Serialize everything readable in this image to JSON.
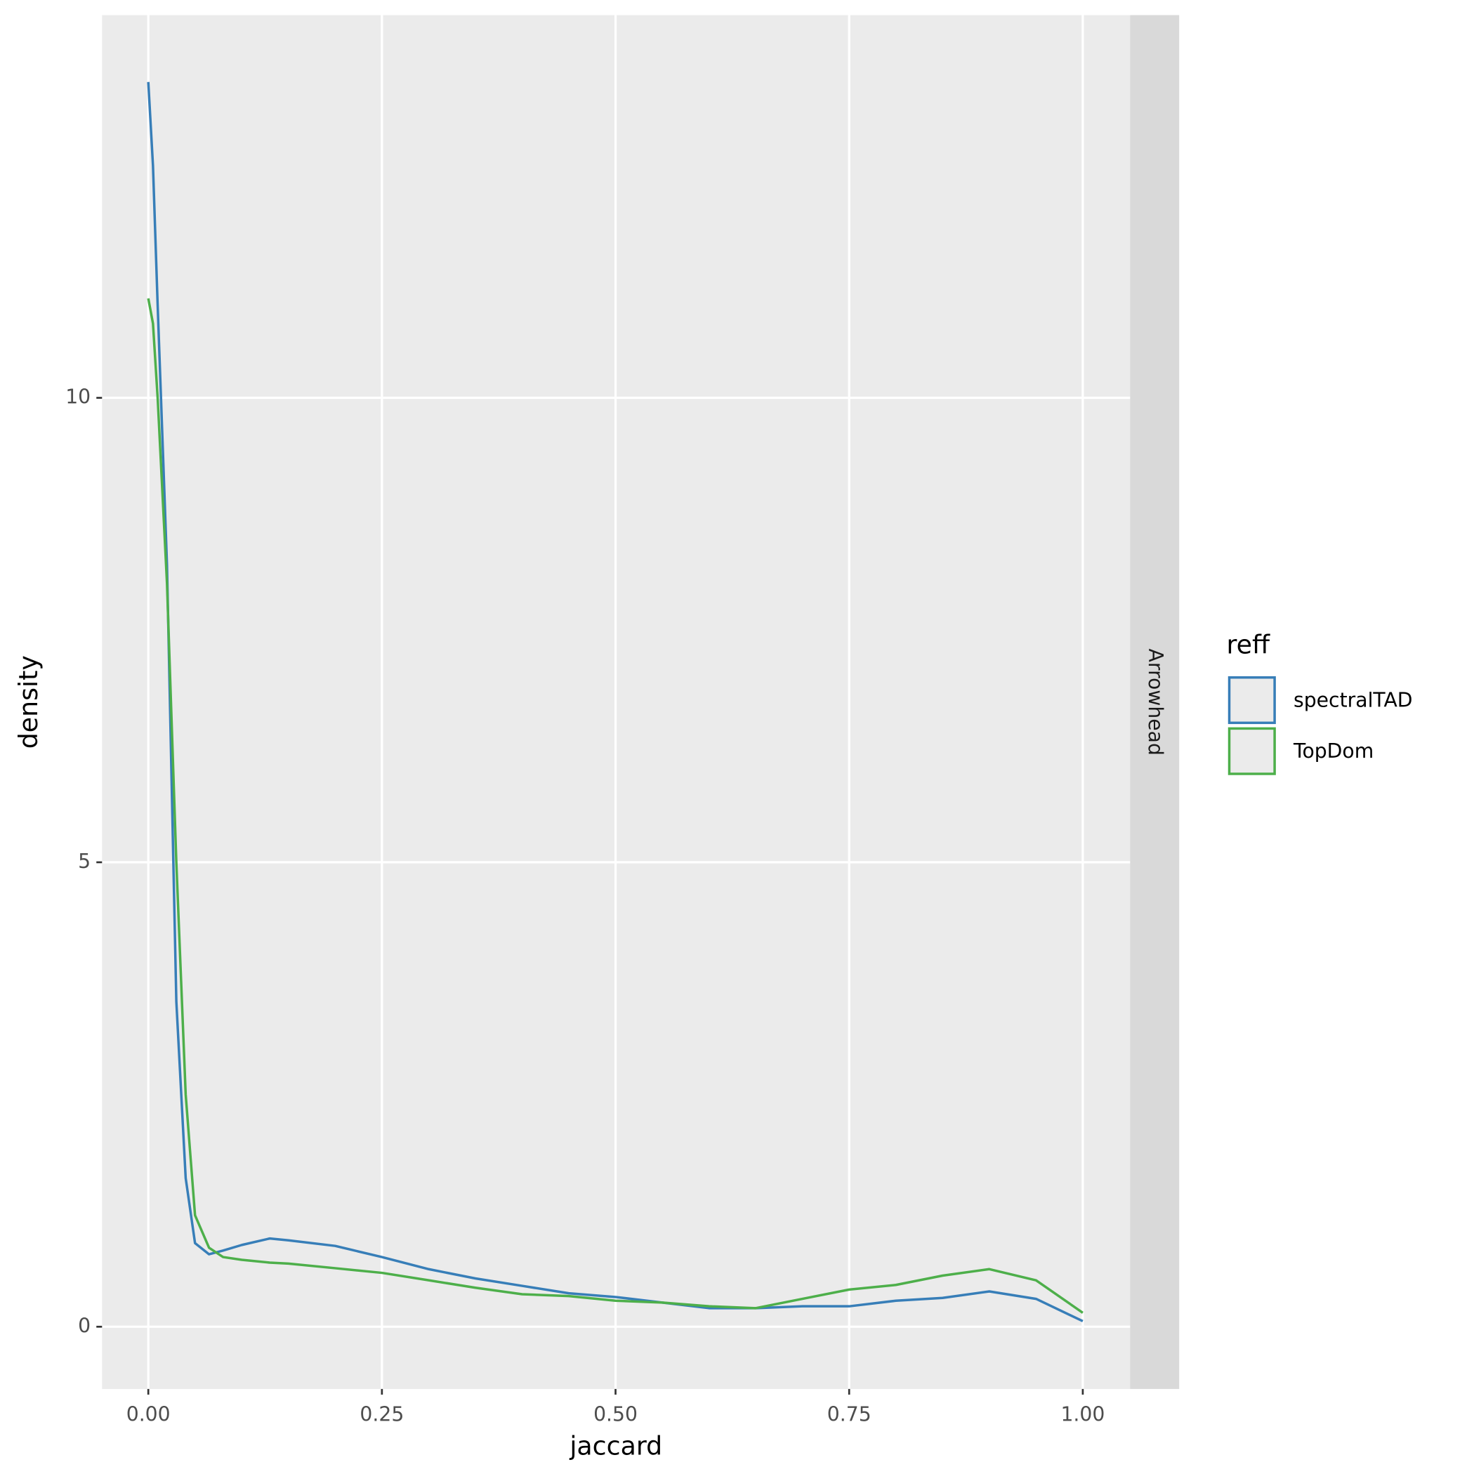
{
  "chart_data": {
    "type": "line",
    "x_label": "jaccard",
    "y_label": "density",
    "facet_label": "Arrowhead",
    "legend_title": "reff",
    "x": [
      0,
      0.005,
      0.01,
      0.02,
      0.03,
      0.04,
      0.05,
      0.065,
      0.08,
      0.1,
      0.13,
      0.15,
      0.2,
      0.25,
      0.3,
      0.35,
      0.4,
      0.45,
      0.5,
      0.55,
      0.6,
      0.65,
      0.7,
      0.75,
      0.8,
      0.85,
      0.9,
      0.95,
      1.0
    ],
    "series": [
      {
        "name": "spectralTAD",
        "color": "#377eb8",
        "values": [
          13.4,
          12.5,
          11,
          8.2,
          3.5,
          1.6,
          0.9,
          0.78,
          0.82,
          0.88,
          0.95,
          0.93,
          0.87,
          0.75,
          0.62,
          0.52,
          0.44,
          0.36,
          0.32,
          0.26,
          0.2,
          0.2,
          0.22,
          0.22,
          0.28,
          0.31,
          0.38,
          0.3,
          0.06
        ]
      },
      {
        "name": "TopDom",
        "color": "#4daf4a",
        "values": [
          11.07,
          10.8,
          10,
          8,
          5,
          2.5,
          1.2,
          0.85,
          0.75,
          0.72,
          0.69,
          0.68,
          0.63,
          0.58,
          0.5,
          0.42,
          0.35,
          0.33,
          0.28,
          0.26,
          0.22,
          0.2,
          0.3,
          0.4,
          0.45,
          0.55,
          0.62,
          0.5,
          0.15
        ]
      }
    ],
    "xlim": [
      -0.0495,
      1.0506
    ],
    "ylim": [
      -0.67,
      14.12
    ],
    "xticks": [
      {
        "value": 0,
        "label": "0.00"
      },
      {
        "value": 0.25,
        "label": "0.25"
      },
      {
        "value": 0.5,
        "label": "0.50"
      },
      {
        "value": 0.75,
        "label": "0.75"
      },
      {
        "value": 1,
        "label": "1.00"
      }
    ],
    "yticks": [
      0,
      5,
      10
    ],
    "grid": true,
    "legend_position": "right"
  }
}
